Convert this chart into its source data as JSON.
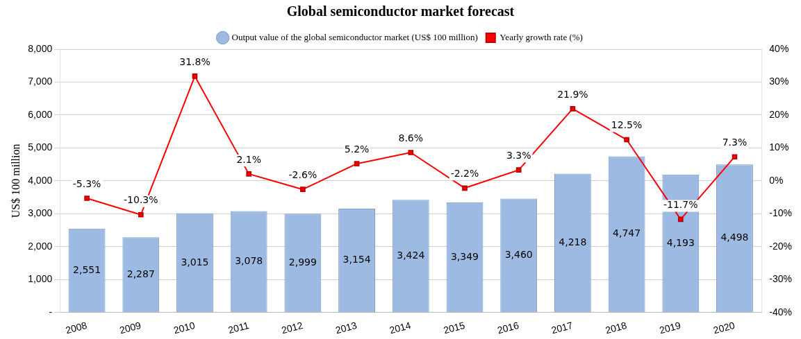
{
  "chart_data": {
    "type": "bar",
    "title": "Global semiconductor market forecast",
    "ylabel": "US$ 100 million",
    "categories": [
      "2008",
      "2009",
      "2010",
      "2011",
      "2012",
      "2013",
      "2014",
      "2015",
      "2016",
      "2017",
      "2018",
      "2019",
      "2020"
    ],
    "series": [
      {
        "name": "Output value of the global semiconductor market (US$ 100 million)",
        "color": "#9dbbe2",
        "values": [
          2551,
          2287,
          3015,
          3078,
          2999,
          3154,
          3424,
          3349,
          3460,
          4218,
          4747,
          4193,
          4498
        ],
        "value_labels": [
          "2,551",
          "2,287",
          "3,015",
          "3,078",
          "2,999",
          "3,154",
          "3,424",
          "3,349",
          "3,460",
          "4,218",
          "4,747",
          "4,193",
          "4,498"
        ]
      },
      {
        "name": "Yearly growth rate (%)",
        "type": "line",
        "axis": "y2",
        "color": "#ff0000",
        "marker": "square",
        "values": [
          -5.3,
          -10.3,
          31.8,
          2.1,
          -2.6,
          5.2,
          8.6,
          -2.2,
          3.3,
          21.9,
          12.5,
          -11.7,
          7.3
        ],
        "value_labels": [
          "-5.3%",
          "-10.3%",
          "31.8%",
          "2.1%",
          "-2.6%",
          "5.2%",
          "8.6%",
          "-2.2%",
          "3.3%",
          "21.9%",
          "12.5%",
          "-11.7%",
          "7.3%"
        ]
      }
    ],
    "ylim": [
      0,
      8000
    ],
    "yticks": [
      {
        "value": 0,
        "label": "-"
      },
      {
        "value": 1000,
        "label": "1,000"
      },
      {
        "value": 2000,
        "label": "2,000"
      },
      {
        "value": 3000,
        "label": "3,000"
      },
      {
        "value": 4000,
        "label": "4,000"
      },
      {
        "value": 5000,
        "label": "5,000"
      },
      {
        "value": 6000,
        "label": "6,000"
      },
      {
        "value": 7000,
        "label": "7,000"
      },
      {
        "value": 8000,
        "label": "8,000"
      }
    ],
    "y2lim": [
      -40,
      40
    ],
    "y2ticks": [
      {
        "value": -40,
        "label": "-40%"
      },
      {
        "value": -30,
        "label": "-30%"
      },
      {
        "value": -20,
        "label": "-20%"
      },
      {
        "value": -10,
        "label": "-10%"
      },
      {
        "value": 0,
        "label": "0%"
      },
      {
        "value": 10,
        "label": "10%"
      },
      {
        "value": 20,
        "label": "20%"
      },
      {
        "value": 30,
        "label": "30%"
      },
      {
        "value": 40,
        "label": "40%"
      }
    ],
    "grid": "y",
    "legend": "top"
  }
}
